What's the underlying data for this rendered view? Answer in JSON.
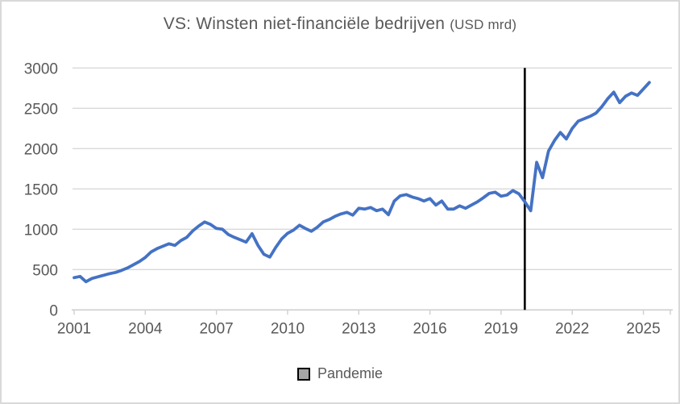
{
  "chart": {
    "title_main": "VS: Winsten niet-financiële bedrijven ",
    "title_suffix": "(USD mrd)",
    "legend": [
      {
        "label": "Pandemie",
        "marker_fill": "#a6a6a6",
        "marker_border": "#000000"
      }
    ]
  },
  "chart_data": {
    "type": "line",
    "title": "VS: Winsten niet-financiële bedrijven (USD mrd)",
    "xlabel": "",
    "ylabel": "",
    "ylim": [
      0,
      3000
    ],
    "grid": "horizontal",
    "legend_position": "bottom",
    "y_ticks": [
      0,
      500,
      1000,
      1500,
      2000,
      2500,
      3000
    ],
    "y_tick_labels": [
      "0",
      "500",
      "1000",
      "1500",
      "2000",
      "2500",
      "3000"
    ],
    "x_tick_labels": [
      "2001",
      "2004",
      "2007",
      "2010",
      "2013",
      "2016",
      "2019",
      "2022",
      "2025"
    ],
    "x_tick_quarter_indices": [
      0,
      12,
      24,
      36,
      48,
      60,
      72,
      84,
      96
    ],
    "series": [
      {
        "name": "Winsten niet-financiële bedrijven (USD mrd)",
        "frequency": "quarterly",
        "x_start": "2001Q1",
        "x_end": "2025Q2",
        "values": [
          400,
          415,
          350,
          390,
          410,
          430,
          450,
          465,
          490,
          520,
          560,
          600,
          650,
          720,
          760,
          790,
          820,
          800,
          860,
          900,
          980,
          1040,
          1090,
          1060,
          1010,
          1000,
          935,
          900,
          870,
          840,
          945,
          800,
          690,
          655,
          775,
          880,
          950,
          990,
          1050,
          1010,
          975,
          1025,
          1090,
          1120,
          1160,
          1190,
          1210,
          1175,
          1260,
          1250,
          1270,
          1230,
          1250,
          1180,
          1350,
          1415,
          1430,
          1400,
          1380,
          1350,
          1380,
          1300,
          1350,
          1250,
          1250,
          1290,
          1260,
          1300,
          1340,
          1390,
          1445,
          1460,
          1410,
          1425,
          1480,
          1440,
          1340,
          1230,
          1830,
          1640,
          1970,
          2100,
          2200,
          2120,
          2250,
          2340,
          2370,
          2400,
          2440,
          2520,
          2620,
          2700,
          2570,
          2650,
          2690,
          2660,
          2740,
          2820
        ]
      }
    ],
    "annotations": [
      {
        "type": "vline",
        "x": "2020Q1",
        "quarter_index": 76,
        "label": "Pandemie",
        "color": "#000000"
      }
    ],
    "colors": {
      "line": "#4472C4",
      "gridline": "#d9d9d9",
      "axis": "#cfcfcf",
      "text": "#595959",
      "vline": "#000000",
      "legend_fill": "#a6a6a6",
      "frame_border": "#d9d9d9"
    }
  }
}
